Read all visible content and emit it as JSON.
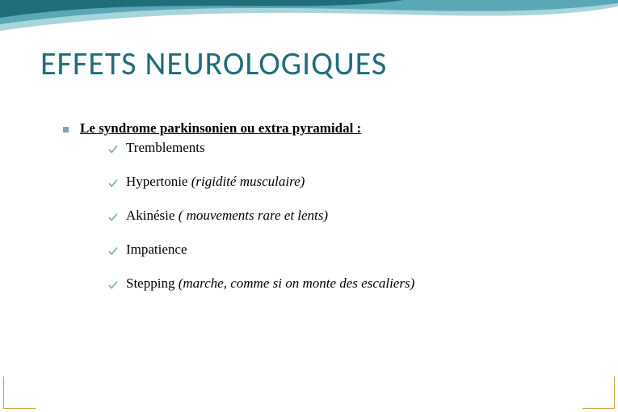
{
  "colors": {
    "title": "#1f6e7a",
    "text": "#000000",
    "bullet": "#7aa6b8",
    "check": "#7aa6b8",
    "corner": "#c9a23a",
    "wave_dark": "#1f6e7a",
    "wave_mid": "#5aa8b5",
    "wave_light": "#a8d4dc",
    "background": "#ffffff"
  },
  "typography": {
    "title_fontsize": 40,
    "body_fontsize": 17,
    "title_family": "Calibri, Arial, sans-serif",
    "body_family": "Georgia, 'Times New Roman', serif"
  },
  "title": "EFFETS NEUROLOGIQUES",
  "main_bullet": "Le syndrome parkinsonien ou extra pyramidal :",
  "sub_items": [
    {
      "plain": "Tremblements",
      "italic": ""
    },
    {
      "plain": "Hypertonie ",
      "italic": "(rigidité musculaire)"
    },
    {
      "plain": "Akinésie ",
      "italic": "( mouvements rare et lents)"
    },
    {
      "plain": "Impatience",
      "italic": ""
    },
    {
      "plain": "Stepping ",
      "italic": "(marche, comme si on monte des escaliers)"
    }
  ]
}
